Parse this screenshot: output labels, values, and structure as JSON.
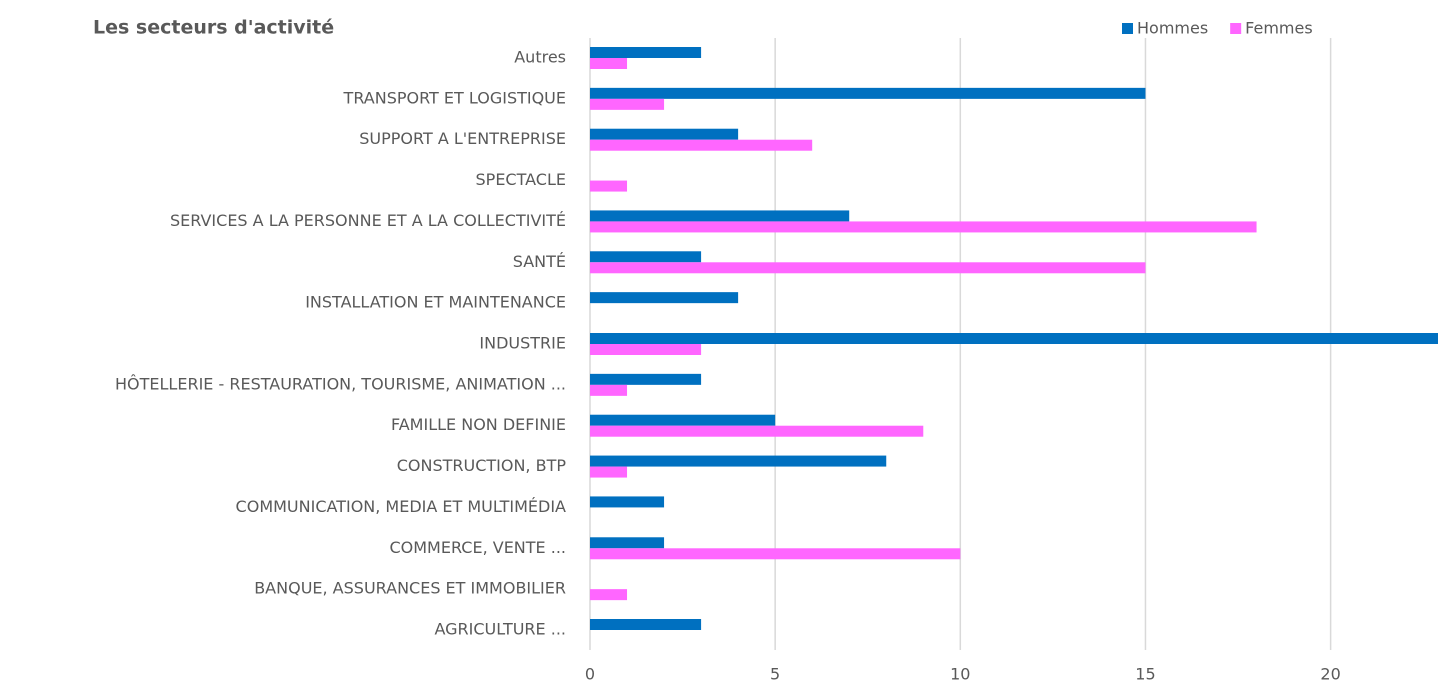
{
  "chart_data": {
    "type": "bar",
    "orientation": "horizontal",
    "title": "Les secteurs d'activité",
    "categories": [
      "Autres",
      "TRANSPORT ET LOGISTIQUE",
      "SUPPORT A L'ENTREPRISE",
      "SPECTACLE",
      "SERVICES A LA PERSONNE ET A LA COLLECTIVITÉ",
      "SANTÉ",
      "INSTALLATION ET MAINTENANCE",
      "INDUSTRIE",
      "HÔTELLERIE - RESTAURATION, TOURISME, ANIMATION ...",
      "FAMILLE NON DEFINIE",
      "CONSTRUCTION, BTP",
      "COMMUNICATION, MEDIA ET MULTIMÉDIA",
      "COMMERCE, VENTE ...",
      "BANQUE, ASSURANCES ET IMMOBILIER",
      "AGRICULTURE ..."
    ],
    "series": [
      {
        "name": "Hommes",
        "color": "#0070c0",
        "values": [
          3,
          15,
          4,
          0,
          7,
          3,
          4,
          23,
          3,
          5,
          8,
          2,
          2,
          0,
          3
        ]
      },
      {
        "name": "Femmes",
        "color": "#ff66ff",
        "values": [
          1,
          2,
          6,
          1,
          18,
          15,
          0,
          3,
          1,
          9,
          1,
          0,
          10,
          1,
          0
        ]
      }
    ],
    "xlim": [
      0,
      22.9
    ],
    "xticks": [
      0,
      5,
      10,
      15,
      20
    ],
    "grid": true,
    "legend": "top-right"
  }
}
